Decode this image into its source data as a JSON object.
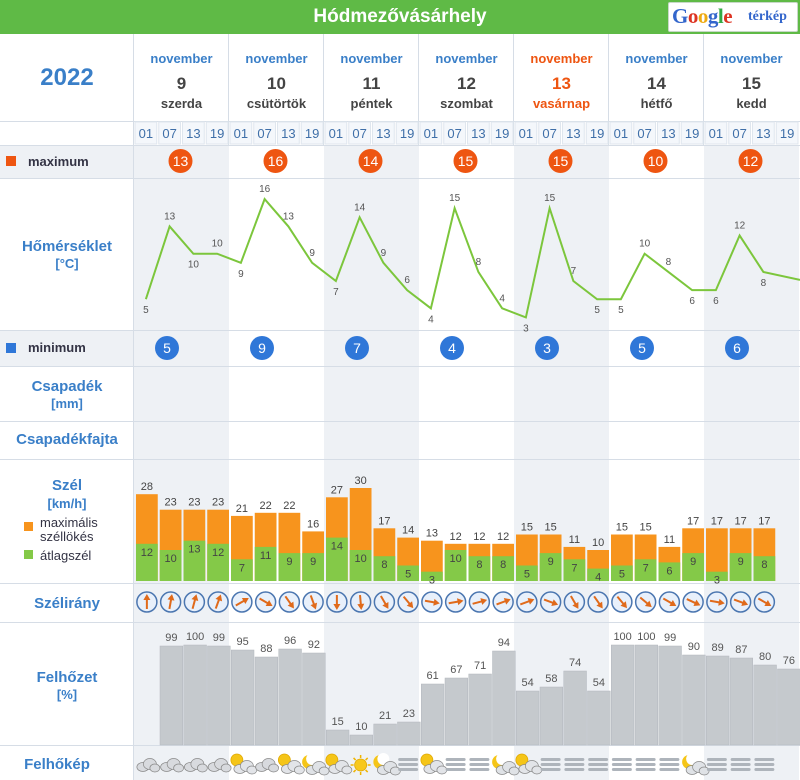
{
  "title": "Hódmezővásárhely",
  "map_link": {
    "google": "Google",
    "terkep": "térkép"
  },
  "year": "2022",
  "days": [
    {
      "month": "november",
      "day": "9",
      "weekday": "szerda",
      "sunday": false
    },
    {
      "month": "november",
      "day": "10",
      "weekday": "csütörtök",
      "sunday": false
    },
    {
      "month": "november",
      "day": "11",
      "weekday": "péntek",
      "sunday": false
    },
    {
      "month": "november",
      "day": "12",
      "weekday": "szombat",
      "sunday": false
    },
    {
      "month": "november",
      "day": "13",
      "weekday": "vasárnap",
      "sunday": true
    },
    {
      "month": "november",
      "day": "14",
      "weekday": "hétfő",
      "sunday": false
    },
    {
      "month": "november",
      "day": "15",
      "weekday": "kedd",
      "sunday": false
    }
  ],
  "hours": [
    "01",
    "07",
    "13",
    "19"
  ],
  "rows": {
    "maximum": "maximum",
    "temperature": "Hőmérséklet",
    "temperature_unit": "[°C]",
    "minimum": "minimum",
    "precip": "Csapadék",
    "precip_unit": "[mm]",
    "precip_type": "Csapadékfajta",
    "wind": "Szél",
    "wind_unit": "[km/h]",
    "wind_legend_gust": "maximális széllökés",
    "wind_legend_avg": "átlagszél",
    "wind_dir": "Szélirány",
    "cloud": "Felhőzet",
    "cloud_unit": "[%]",
    "cloud_pic": "Felhőkép"
  },
  "colors": {
    "header_green": "#5fba46",
    "label_blue": "#3a7fc8",
    "sunday_orange": "#ee5511",
    "max_badge": "#ee5511",
    "min_badge": "#2f77d8",
    "gust_orange": "#f7941d",
    "avg_green": "#84c948",
    "cloud_gray": "#c5c9cd",
    "temp_line": "#7cc63c"
  },
  "chart_data": {
    "type": "line",
    "max_temps": [
      13,
      16,
      14,
      15,
      15,
      10,
      12
    ],
    "min_temps": [
      5,
      9,
      7,
      4,
      3,
      5,
      6
    ],
    "temperature": [
      5,
      13,
      10,
      10,
      9,
      16,
      13,
      9,
      7,
      14,
      9,
      6,
      4,
      15,
      8,
      4,
      3,
      15,
      7,
      5,
      5,
      10,
      8,
      6,
      6,
      12,
      8
    ],
    "wind_gust": [
      28,
      23,
      23,
      23,
      21,
      22,
      22,
      16,
      27,
      30,
      17,
      14,
      13,
      12,
      12,
      12,
      15,
      15,
      11,
      10,
      15,
      15,
      11,
      17,
      17,
      17,
      17
    ],
    "wind_avg": [
      12,
      10,
      13,
      12,
      7,
      11,
      9,
      9,
      14,
      10,
      8,
      5,
      3,
      10,
      8,
      8,
      5,
      9,
      7,
      4,
      5,
      7,
      6,
      9,
      3,
      9,
      8
    ],
    "wind_dir_deg": [
      0,
      10,
      15,
      20,
      60,
      120,
      145,
      160,
      180,
      175,
      150,
      140,
      100,
      80,
      75,
      70,
      70,
      110,
      150,
      145,
      140,
      130,
      120,
      115,
      100,
      110,
      120
    ],
    "cloud_cover": [
      99,
      100,
      99,
      95,
      88,
      96,
      92,
      15,
      10,
      21,
      23,
      61,
      67,
      71,
      94,
      54,
      58,
      74,
      54,
      100,
      100,
      99,
      90,
      89,
      87,
      80,
      76
    ],
    "cloud_icons": [
      "cloud",
      "cloud",
      "cloud",
      "cloud",
      "partly",
      "cloud",
      "partly",
      "partly-moon",
      "partly",
      "sun",
      "partly-moon",
      "fog",
      "partly",
      "fog",
      "fog",
      "partly-moon",
      "partly",
      "fog",
      "fog",
      "fog",
      "fog",
      "fog",
      "fog",
      "partly-moon",
      "fog",
      "fog",
      "fog"
    ]
  }
}
